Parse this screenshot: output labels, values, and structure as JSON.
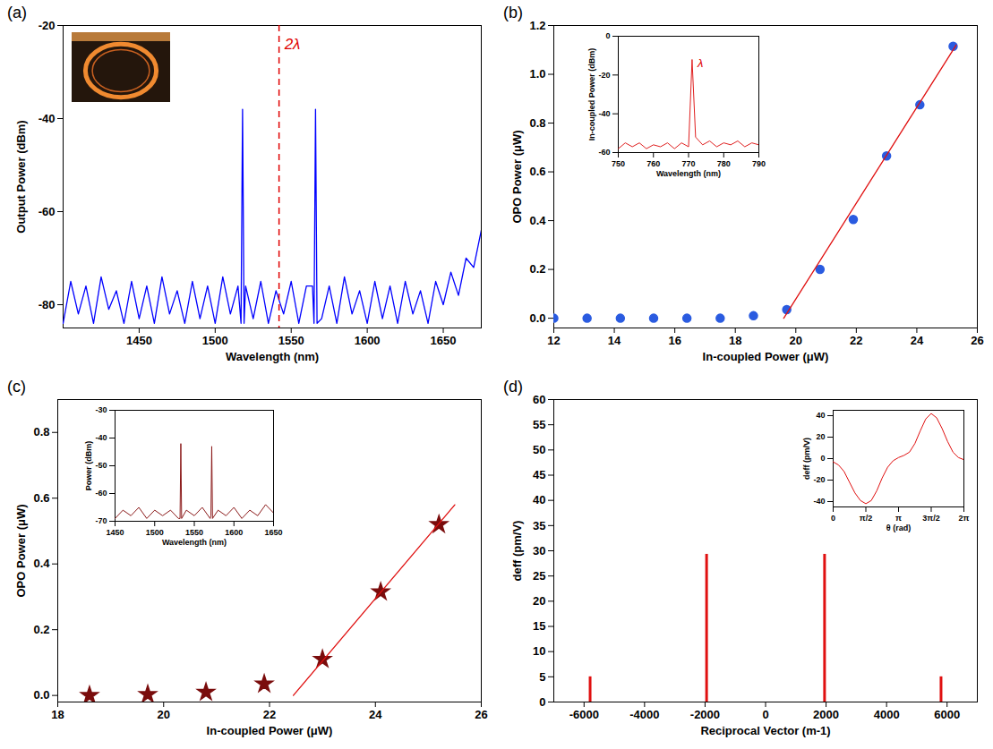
{
  "chart_data": [
    {
      "panel": "(a)",
      "type": "line",
      "x_label": "Wavelength (nm)",
      "y_label": "Output Power (dBm)",
      "xlim": [
        1400,
        1675
      ],
      "xticks": [
        1450,
        1500,
        1550,
        1600,
        1650
      ],
      "ylim": [
        -85,
        -20
      ],
      "yticks": [
        -80,
        -60,
        -40,
        -20
      ],
      "x": [
        1400,
        1405,
        1410,
        1415,
        1420,
        1425,
        1430,
        1435,
        1440,
        1445,
        1450,
        1455,
        1460,
        1465,
        1470,
        1475,
        1480,
        1485,
        1490,
        1495,
        1500,
        1505,
        1510,
        1515,
        1517,
        1518,
        1519,
        1520,
        1525,
        1530,
        1535,
        1540,
        1545,
        1550,
        1555,
        1560,
        1564,
        1565,
        1566,
        1567,
        1570,
        1575,
        1580,
        1585,
        1590,
        1595,
        1600,
        1605,
        1610,
        1615,
        1620,
        1625,
        1630,
        1635,
        1640,
        1645,
        1650,
        1655,
        1660,
        1665,
        1670,
        1675
      ],
      "series": [
        {
          "color": "#0000ff",
          "values": [
            -84,
            -75,
            -82,
            -76,
            -84,
            -74,
            -81,
            -77,
            -84,
            -75,
            -83,
            -76,
            -84,
            -74,
            -82,
            -77,
            -84,
            -75,
            -83,
            -76,
            -84,
            -74,
            -82,
            -76,
            -84,
            -38,
            -84,
            -76,
            -83,
            -75,
            -84,
            -77,
            -82,
            -75,
            -84,
            -76,
            -76,
            -84,
            -38,
            -84,
            -83,
            -76,
            -84,
            -74,
            -82,
            -77,
            -84,
            -75,
            -83,
            -76,
            -84,
            -75,
            -82,
            -77,
            -84,
            -75,
            -80,
            -73,
            -78,
            -70,
            -72,
            -64
          ]
        }
      ],
      "annotations": [
        {
          "text": "2λ",
          "x": 1542,
          "color": "#e00000",
          "line_style": "dashed"
        }
      ]
    },
    {
      "panel": "(b)",
      "type": "scatter",
      "x_label": "In-coupled Power (μW)",
      "y_label": "OPO Power (μW)",
      "xlim": [
        12,
        26
      ],
      "xticks": [
        12,
        14,
        16,
        18,
        20,
        22,
        24,
        26
      ],
      "ylim": [
        -0.04,
        1.2
      ],
      "yticks": [
        {
          "value": 0,
          "label": "0.0"
        },
        0.2,
        0.4,
        0.6,
        0.8,
        {
          "value": 1,
          "label": "1.0"
        },
        1.2
      ],
      "series": [
        {
          "type": "scatter",
          "marker": "circle",
          "color": "#2a5be0",
          "x": [
            12.0,
            13.1,
            14.2,
            15.3,
            16.4,
            17.5,
            18.6,
            19.7,
            20.8,
            21.9,
            23.0,
            24.1,
            25.2
          ],
          "values": [
            0,
            0,
            0,
            0,
            0,
            0,
            0.01,
            0.035,
            0.2,
            0.405,
            0.665,
            0.875,
            1.115
          ]
        },
        {
          "type": "line",
          "color": "#e01010",
          "x": [
            19.6,
            25.3
          ],
          "values": [
            0,
            1.12
          ]
        }
      ],
      "inset": {
        "type": "line",
        "x_label": "Wavelength (nm)",
        "y_label": "In-coupled Power (dBm)",
        "xlim": [
          750,
          790
        ],
        "xticks": [
          750,
          760,
          770,
          780,
          790
        ],
        "ylim": [
          -60,
          0
        ],
        "yticks": [
          -60,
          -40,
          -20,
          0
        ],
        "x": [
          750,
          752,
          754,
          756,
          758,
          760,
          762,
          764,
          766,
          768,
          770,
          771,
          772,
          774,
          776,
          778,
          780,
          782,
          784,
          786,
          788,
          790
        ],
        "series": [
          {
            "color": "#e02020",
            "values": [
              -58,
              -55,
              -57,
              -55,
              -58,
              -56,
              -57,
              -55,
              -58,
              -55,
              -57,
              -12,
              -52,
              -56,
              -54,
              -57,
              -55,
              -56,
              -54,
              -57,
              -55,
              -56
            ]
          }
        ],
        "annotations": [
          {
            "text": "λ",
            "color": "#e00000"
          }
        ]
      }
    },
    {
      "panel": "(c)",
      "type": "scatter",
      "x_label": "In-coupled Power (μW)",
      "y_label": "OPO Power (μW)",
      "xlim": [
        18,
        26
      ],
      "xticks": [
        18,
        20,
        22,
        24,
        26
      ],
      "ylim": [
        -0.02,
        0.9
      ],
      "yticks": [
        {
          "value": 0,
          "label": "0.0"
        },
        0.2,
        0.4,
        0.6,
        0.8
      ],
      "series": [
        {
          "type": "scatter",
          "marker": "star",
          "color": "#7a0c0c",
          "x": [
            18.6,
            19.7,
            20.8,
            21.9,
            23.0,
            24.1,
            25.2
          ],
          "values": [
            0,
            0.003,
            0.01,
            0.035,
            0.11,
            0.315,
            0.52
          ]
        },
        {
          "type": "line",
          "color": "#e01010",
          "x": [
            22.45,
            25.5
          ],
          "values": [
            0,
            0.58
          ]
        }
      ],
      "inset": {
        "type": "line",
        "x_label": "Wavelength (nm)",
        "y_label": "Power (dBm)",
        "xlim": [
          1450,
          1650
        ],
        "xticks": [
          1450,
          1500,
          1550,
          1600,
          1650
        ],
        "ylim": [
          -70,
          -30
        ],
        "yticks": [
          -70,
          -60,
          -50,
          -40,
          -30
        ],
        "x": [
          1450,
          1460,
          1470,
          1480,
          1490,
          1500,
          1510,
          1520,
          1530,
          1532,
          1533,
          1534,
          1540,
          1550,
          1560,
          1570,
          1571,
          1572,
          1573,
          1580,
          1590,
          1600,
          1610,
          1620,
          1630,
          1640,
          1650
        ],
        "series": [
          {
            "color": "#8b1a1a",
            "values": [
              -69,
              -66,
              -68,
              -65,
              -69,
              -66,
              -68,
              -66,
              -69,
              -69,
              -42,
              -69,
              -66,
              -68,
              -65,
              -69,
              -68,
              -43,
              -69,
              -66,
              -68,
              -65,
              -69,
              -66,
              -68,
              -64,
              -67
            ]
          }
        ]
      }
    },
    {
      "panel": "(d)",
      "type": "bar",
      "x_label": "Reciprocal Vector (m-1)",
      "y_label": "deff (pm/V)",
      "xlim": [
        -7000,
        7000
      ],
      "xticks": [
        -6000,
        -4000,
        -2000,
        0,
        2000,
        4000,
        6000
      ],
      "ylim": [
        0,
        60
      ],
      "yticks": [
        0,
        5,
        10,
        15,
        20,
        25,
        30,
        35,
        40,
        45,
        50,
        55,
        60
      ],
      "x": [
        -5800,
        -1950,
        1950,
        5800
      ],
      "series": [
        {
          "color": "#e01010",
          "values": [
            5,
            29.3,
            29.3,
            5
          ]
        }
      ],
      "inset": {
        "type": "line",
        "x_label": "θ (rad)",
        "y_label": "deff (pm/V)",
        "xlim": [
          0,
          6.283
        ],
        "xticks": [
          0,
          {
            "value": 1.571,
            "label": "π/2"
          },
          {
            "value": 3.142,
            "label": "π"
          },
          {
            "value": 4.712,
            "label": "3π/2"
          },
          {
            "value": 6.283,
            "label": "2π"
          }
        ],
        "ylim": [
          -45,
          45
        ],
        "yticks": [
          -40,
          -20,
          0,
          20,
          40
        ],
        "x": [
          0,
          0.262,
          0.524,
          0.785,
          1.047,
          1.309,
          1.571,
          1.833,
          2.094,
          2.356,
          2.618,
          2.88,
          3.142,
          3.403,
          3.665,
          3.927,
          4.189,
          4.451,
          4.712,
          4.974,
          5.236,
          5.498,
          5.76,
          6.021,
          6.283
        ],
        "series": [
          {
            "color": "#e01010",
            "values": [
              -3,
              -6,
              -12,
              -22,
              -32,
              -39,
              -42,
              -39,
              -30,
              -18,
              -8,
              -2,
              1,
              3,
              6,
              14,
              26,
              37,
              42,
              38,
              28,
              16,
              6,
              1,
              -1
            ]
          }
        ]
      }
    }
  ]
}
